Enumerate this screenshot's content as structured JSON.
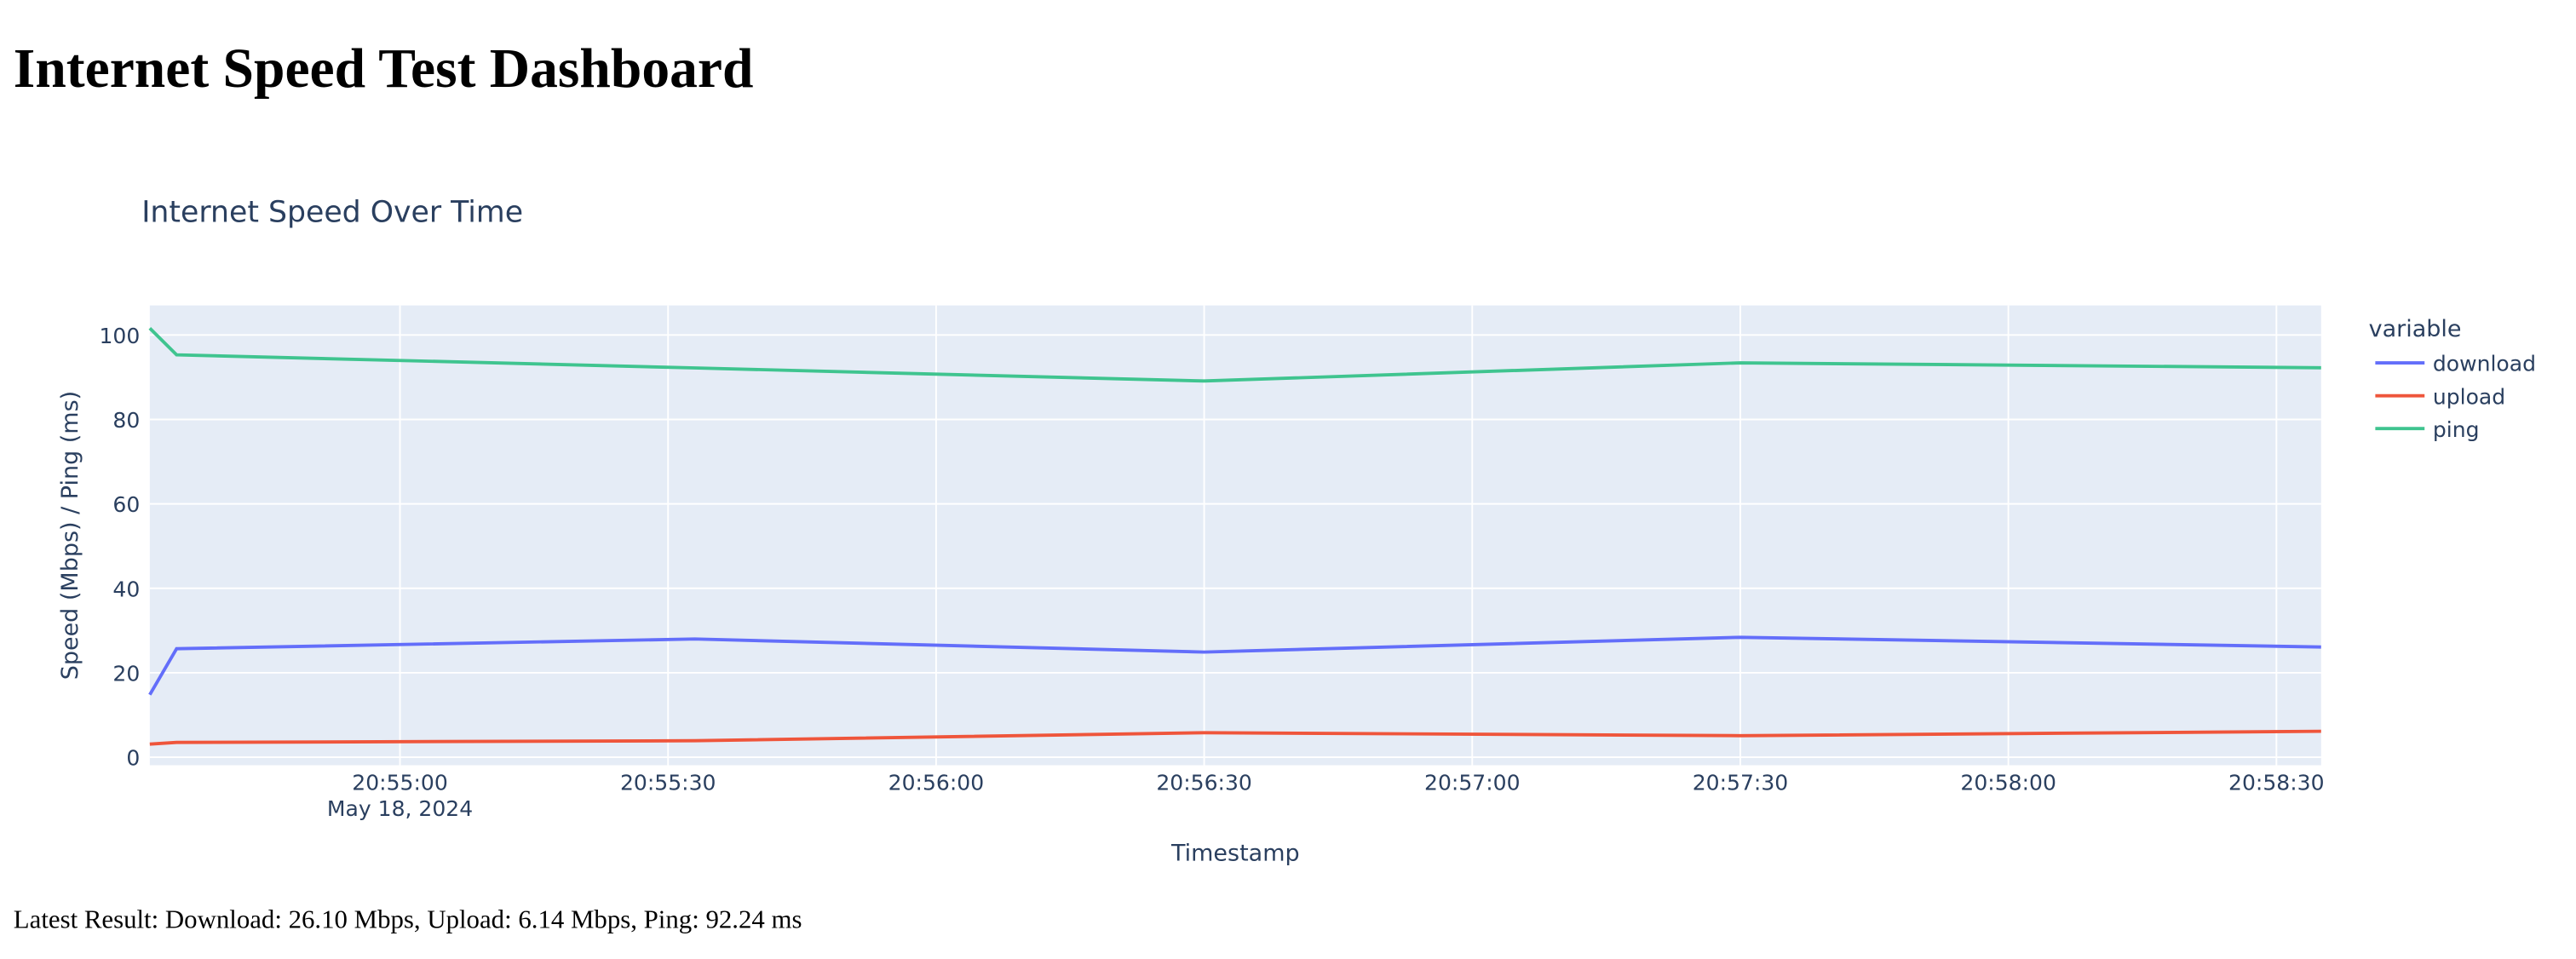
{
  "header": {
    "title": "Internet Speed Test Dashboard"
  },
  "chart_data": {
    "type": "line",
    "title": "Internet Speed Over Time",
    "x_label": "Timestamp",
    "y_label": "Speed (Mbps) / Ping (ms)",
    "x": [
      "2024-05-18 20:54:32",
      "2024-05-18 20:54:35",
      "2024-05-18 20:55:33",
      "2024-05-18 20:56:30",
      "2024-05-18 20:57:30",
      "2024-05-18 20:58:35"
    ],
    "series": [
      {
        "name": "download",
        "color": "#636efa",
        "values": [
          14.8,
          25.7,
          28.0,
          24.9,
          28.4,
          26.1
        ]
      },
      {
        "name": "upload",
        "color": "#EF553B",
        "values": [
          3.1,
          3.5,
          3.9,
          5.8,
          5.1,
          6.14
        ]
      },
      {
        "name": "ping",
        "color": "#3fc48f",
        "values": [
          101.6,
          95.3,
          92.2,
          89.1,
          93.4,
          92.24
        ]
      }
    ],
    "legend_title": "variable",
    "xlim": [
      "2024-05-18 20:54:32",
      "2024-05-18 20:58:35"
    ],
    "xticks": [
      {
        "value": "2024-05-18 20:55:00",
        "label": "20:55:00"
      },
      {
        "value": "2024-05-18 20:55:30",
        "label": "20:55:30"
      },
      {
        "value": "2024-05-18 20:56:00",
        "label": "20:56:00"
      },
      {
        "value": "2024-05-18 20:56:30",
        "label": "20:56:30"
      },
      {
        "value": "2024-05-18 20:57:00",
        "label": "20:57:00"
      },
      {
        "value": "2024-05-18 20:57:30",
        "label": "20:57:30"
      },
      {
        "value": "2024-05-18 20:58:00",
        "label": "20:58:00"
      },
      {
        "value": "2024-05-18 20:58:30",
        "label": "20:58:30"
      }
    ],
    "x_date_label": "May 18, 2024",
    "ylim": [
      -1.9,
      107
    ],
    "yticks": [
      0,
      20,
      40,
      60,
      80,
      100
    ],
    "grid": true,
    "legend": "right"
  },
  "footer": {
    "text": "Latest Result: Download: 26.10 Mbps, Upload: 6.14 Mbps, Ping: 92.24 ms"
  }
}
